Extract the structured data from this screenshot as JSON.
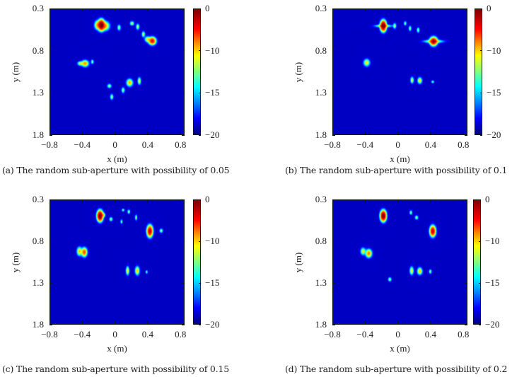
{
  "chart_data": [
    {
      "type": "heatmap",
      "caption": "(a) The random sub-aperture with possibility of 0.05",
      "xlabel": "x (m)",
      "ylabel": "y (m)",
      "xlim": [
        -0.8,
        0.85
      ],
      "ylim": [
        0.3,
        1.8
      ],
      "xticks": [
        "−0.8",
        "−0.4",
        "0",
        "0.4",
        "0.8"
      ],
      "yticks": [
        "0.3",
        "0.8",
        "1.3",
        "1.8"
      ],
      "colorbar": {
        "range": [
          -20,
          0
        ],
        "ticks": [
          "0",
          "−10",
          "−15",
          "−20"
        ]
      },
      "peaks_db": [
        [
          -0.17,
          0.49,
          0,
          0.022,
          0.035
        ],
        [
          -0.12,
          0.5,
          -12,
          0.03,
          0.03
        ],
        [
          -0.22,
          0.49,
          -13,
          0.02,
          0.03
        ],
        [
          0.46,
          0.68,
          -5,
          0.025,
          0.025
        ],
        [
          0.4,
          0.66,
          -15,
          0.02,
          0.02
        ],
        [
          -0.37,
          0.95,
          -11,
          0.025,
          0.022
        ],
        [
          -0.43,
          0.95,
          -16,
          0.02,
          0.015
        ],
        [
          -0.28,
          0.93,
          -17,
          0.01,
          0.015
        ],
        [
          0.18,
          1.18,
          -12,
          0.022,
          0.025
        ],
        [
          0.3,
          1.16,
          -15,
          0.012,
          0.025
        ],
        [
          -0.07,
          1.22,
          -17,
          0.015,
          0.015
        ],
        [
          0.1,
          1.27,
          -17,
          0.012,
          0.02
        ],
        [
          -0.04,
          1.35,
          -17,
          0.012,
          0.02
        ],
        [
          0.05,
          0.52,
          -17,
          0.012,
          0.02
        ],
        [
          0.21,
          0.47,
          -16,
          0.015,
          0.015
        ],
        [
          0.28,
          0.51,
          -16,
          0.012,
          0.02
        ],
        [
          0.35,
          0.6,
          -16,
          0.012,
          0.02
        ]
      ]
    },
    {
      "type": "heatmap",
      "caption": "(b) The random sub-aperture with possibility of 0.1",
      "xlabel": "x (m)",
      "ylabel": "y (m)",
      "xlim": [
        -0.8,
        0.85
      ],
      "ylim": [
        0.3,
        1.8
      ],
      "xticks": [
        "−0.8",
        "−0.4",
        "0",
        "0.4",
        "0.8"
      ],
      "yticks": [
        "0.3",
        "0.8",
        "1.3",
        "1.8"
      ],
      "colorbar": {
        "range": [
          -20,
          0
        ],
        "ticks": [
          "0",
          "−10",
          "−15",
          "−20"
        ]
      },
      "peaks_db": [
        [
          -0.18,
          0.5,
          0,
          0.02,
          0.035
        ],
        [
          -0.18,
          0.5,
          -15,
          0.06,
          0.01
        ],
        [
          0.44,
          0.685,
          -3,
          0.025,
          0.028
        ],
        [
          0.44,
          0.685,
          -15,
          0.07,
          0.012
        ],
        [
          -0.385,
          0.94,
          -14,
          0.022,
          0.025
        ],
        [
          0.175,
          1.15,
          -15,
          0.012,
          0.022
        ],
        [
          0.27,
          1.155,
          -14,
          0.016,
          0.022
        ],
        [
          0.09,
          0.47,
          -18,
          0.01,
          0.015
        ],
        [
          0.15,
          0.53,
          -17,
          0.01,
          0.018
        ],
        [
          0.25,
          0.55,
          -17,
          0.01,
          0.018
        ],
        [
          -0.04,
          0.5,
          -17,
          0.012,
          0.02
        ],
        [
          0.43,
          1.17,
          -18,
          0.01,
          0.01
        ]
      ]
    },
    {
      "type": "heatmap",
      "caption": "(c) The random sub-aperture with possibility of 0.15",
      "xlabel": "x (m)",
      "ylabel": "y (m)",
      "xlim": [
        -0.8,
        0.85
      ],
      "ylim": [
        0.3,
        1.8
      ],
      "xticks": [
        "−0.8",
        "−0.4",
        "0",
        "0.4",
        "0.8"
      ],
      "yticks": [
        "0.3",
        "0.8",
        "1.3",
        "1.8"
      ],
      "colorbar": {
        "range": [
          -20,
          0
        ],
        "ticks": [
          "0",
          "−10",
          "−15",
          "−20"
        ]
      },
      "peaks_db": [
        [
          -0.185,
          0.49,
          0,
          0.02,
          0.035
        ],
        [
          -0.14,
          0.48,
          -16,
          0.012,
          0.015
        ],
        [
          0.43,
          0.675,
          -3,
          0.02,
          0.038
        ],
        [
          0.57,
          0.67,
          -17,
          0.012,
          0.015
        ],
        [
          -0.38,
          0.93,
          -8,
          0.02,
          0.03
        ],
        [
          -0.44,
          0.92,
          -13,
          0.018,
          0.03
        ],
        [
          0.155,
          1.155,
          -14,
          0.012,
          0.03
        ],
        [
          0.275,
          1.155,
          -13,
          0.016,
          0.03
        ],
        [
          0.1,
          0.42,
          -18,
          0.01,
          0.01
        ],
        [
          0.17,
          0.44,
          -17,
          0.01,
          0.015
        ],
        [
          0.26,
          0.51,
          -17,
          0.008,
          0.02
        ],
        [
          -0.05,
          0.53,
          -17,
          0.012,
          0.015
        ],
        [
          0.08,
          0.56,
          -18,
          0.008,
          0.015
        ],
        [
          0.39,
          1.17,
          -18,
          0.008,
          0.012
        ]
      ]
    },
    {
      "type": "heatmap",
      "caption": "(d) The random sub-aperture with possibility of 0.2",
      "xlabel": "x (m)",
      "ylabel": "y (m)",
      "xlim": [
        -0.8,
        0.85
      ],
      "ylim": [
        0.3,
        1.8
      ],
      "xticks": [
        "−0.8",
        "−0.4",
        "0",
        "0.4",
        "0.8"
      ],
      "yticks": [
        "0.3",
        "0.8",
        "1.3",
        "1.8"
      ],
      "colorbar": {
        "range": [
          -20,
          0
        ],
        "ticks": [
          "0",
          "−10",
          "−15",
          "−20"
        ]
      },
      "peaks_db": [
        [
          -0.18,
          0.49,
          0,
          0.02,
          0.035
        ],
        [
          0.43,
          0.675,
          -3,
          0.02,
          0.035
        ],
        [
          -0.36,
          0.945,
          -10,
          0.022,
          0.028
        ],
        [
          -0.43,
          0.92,
          -15,
          0.018,
          0.025
        ],
        [
          0.17,
          1.155,
          -14,
          0.014,
          0.028
        ],
        [
          0.27,
          1.16,
          -13,
          0.018,
          0.025
        ],
        [
          0.16,
          0.45,
          -17,
          0.01,
          0.015
        ],
        [
          0.23,
          0.51,
          -17,
          0.012,
          0.015
        ],
        [
          0.4,
          1.165,
          -17,
          0.01,
          0.015
        ],
        [
          -0.1,
          1.26,
          -17,
          0.012,
          0.015
        ]
      ]
    }
  ]
}
